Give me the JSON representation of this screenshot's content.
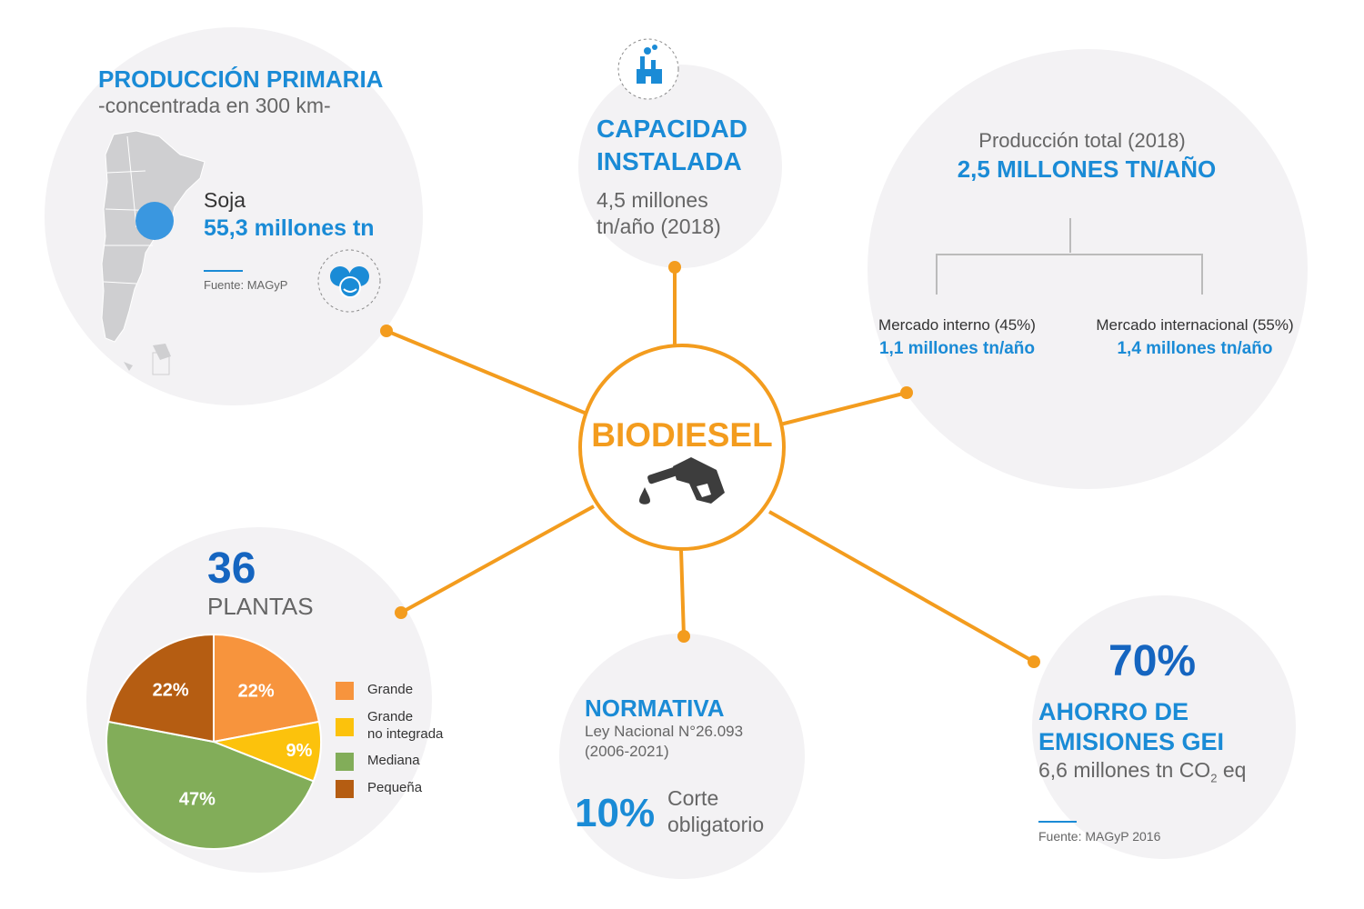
{
  "center": {
    "title": "BIODIESEL",
    "icon": "fuel-nozzle-icon"
  },
  "produccion_primaria": {
    "title": "PRODUCCIÓN PRIMARIA",
    "subtitle": "-concentrada en 300 km-",
    "crop": "Soja",
    "value": "55,3 millones tn",
    "source": "Fuente: MAGyP",
    "icon": "soybean-icon",
    "map_icon": "argentina-map-icon"
  },
  "capacidad": {
    "title_line1": "CAPACIDAD",
    "title_line2": "INSTALADA",
    "value_line1": "4,5 millones",
    "value_line2": "tn/año (2018)",
    "icon": "factory-icon"
  },
  "produccion_total": {
    "label": "Producción total (2018)",
    "value": "2,5 MILLONES TN/AÑO",
    "interno_label": "Mercado interno (45%)",
    "interno_value": "1,1 millones tn/año",
    "internacional_label": "Mercado internacional (55%)",
    "internacional_value": "1,4 millones tn/año"
  },
  "plantas": {
    "count": "36",
    "label": "PLANTAS"
  },
  "normativa": {
    "title": "NORMATIVA",
    "law": "Ley Nacional N°26.093",
    "period": "(2006-2021)",
    "percent": "10%",
    "corte_line1": "Corte",
    "corte_line2": "obligatorio"
  },
  "emisiones": {
    "percent": "70%",
    "title_line1": "AHORRO DE",
    "title_line2": "EMISIONES GEI",
    "value_pre": "6,6 millones tn CO",
    "value_sub": "2",
    "value_post": " eq",
    "source": "Fuente: MAGyP 2016"
  },
  "chart_data": {
    "type": "pie",
    "categories": [
      "Grande",
      "Grande no integrada",
      "Mediana",
      "Pequeña"
    ],
    "legend_labels": [
      "Grande",
      "Grande",
      "no integrada",
      "Mediana",
      "Pequeña"
    ],
    "values": [
      22,
      9,
      47,
      22
    ],
    "labels": [
      "22%",
      "9%",
      "47%",
      "22%"
    ],
    "colors": [
      "#f7943d",
      "#fcc20c",
      "#82ad59",
      "#b55d12"
    ],
    "legend": "right"
  },
  "colors": {
    "accent": "#f39c1e",
    "blue": "#1a8bd6",
    "circle": "#f3f2f4"
  }
}
